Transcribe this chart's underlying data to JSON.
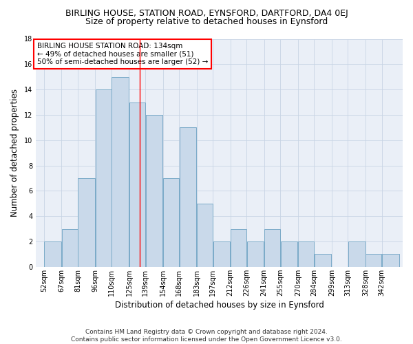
{
  "title_line1": "BIRLING HOUSE, STATION ROAD, EYNSFORD, DARTFORD, DA4 0EJ",
  "title_line2": "Size of property relative to detached houses in Eynsford",
  "xlabel": "Distribution of detached houses by size in Eynsford",
  "ylabel": "Number of detached properties",
  "categories": [
    "52sqm",
    "67sqm",
    "81sqm",
    "96sqm",
    "110sqm",
    "125sqm",
    "139sqm",
    "154sqm",
    "168sqm",
    "183sqm",
    "197sqm",
    "212sqm",
    "226sqm",
    "241sqm",
    "255sqm",
    "270sqm",
    "284sqm",
    "299sqm",
    "313sqm",
    "328sqm",
    "342sqm"
  ],
  "values": [
    2,
    3,
    7,
    14,
    15,
    13,
    12,
    7,
    11,
    5,
    2,
    3,
    2,
    3,
    2,
    2,
    1,
    0,
    2,
    1,
    1
  ],
  "bar_color": "#c9d9ea",
  "bar_edge_color": "#7aaac8",
  "grid_color": "#c8d4e4",
  "background_color": "#eaeff7",
  "annotation_text": "BIRLING HOUSE STATION ROAD: 134sqm\n← 49% of detached houses are smaller (51)\n50% of semi-detached houses are larger (52) →",
  "annotation_box_color": "white",
  "annotation_box_edge_color": "red",
  "vline_color": "red",
  "ylim": [
    0,
    18
  ],
  "yticks": [
    0,
    2,
    4,
    6,
    8,
    10,
    12,
    14,
    16,
    18
  ],
  "bin_edges": [
    52,
    67,
    81,
    96,
    110,
    125,
    139,
    154,
    168,
    183,
    197,
    212,
    226,
    241,
    255,
    270,
    284,
    299,
    313,
    328,
    342,
    357
  ],
  "vline_x_index": 5,
  "footer_text": "Contains HM Land Registry data © Crown copyright and database right 2024.\nContains public sector information licensed under the Open Government Licence v3.0.",
  "title_fontsize": 9,
  "subtitle_fontsize": 9,
  "axis_label_fontsize": 8.5,
  "tick_fontsize": 7,
  "annot_fontsize": 7.5,
  "footer_fontsize": 6.5
}
